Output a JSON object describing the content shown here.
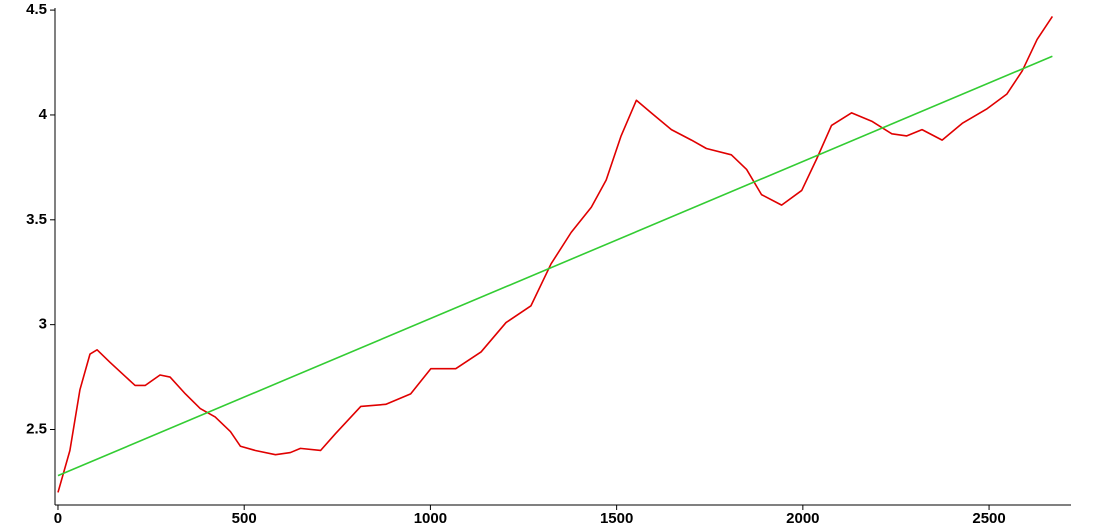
{
  "chart_data": {
    "type": "line",
    "xlim": [
      -8,
      2720
    ],
    "ylim": [
      2.14,
      4.51
    ],
    "xticks": [
      0,
      500,
      1000,
      1500,
      2000,
      2500
    ],
    "yticks": [
      2.5,
      3,
      3.5,
      4,
      4.5
    ],
    "series": [
      {
        "color": "#e00000",
        "x": [
          0,
          32,
          59,
          86,
          105,
          140,
          207,
          234,
          274,
          301,
          342,
          382,
          422,
          463,
          490,
          530,
          584,
          624,
          651,
          705,
          745,
          813,
          880,
          947,
          1001,
          1068,
          1136,
          1203,
          1270,
          1324,
          1378,
          1432,
          1472,
          1512,
          1553,
          1593,
          1647,
          1701,
          1741,
          1808,
          1849,
          1889,
          1943,
          1997,
          2037,
          2077,
          2131,
          2185,
          2239,
          2279,
          2320,
          2374,
          2428,
          2495,
          2548,
          2589,
          2629,
          2670
        ],
        "values": [
          2.2,
          2.4,
          2.69,
          2.86,
          2.88,
          2.82,
          2.71,
          2.71,
          2.76,
          2.75,
          2.67,
          2.6,
          2.56,
          2.49,
          2.42,
          2.4,
          2.38,
          2.39,
          2.41,
          2.4,
          2.48,
          2.61,
          2.62,
          2.67,
          2.79,
          2.79,
          2.87,
          3.01,
          3.09,
          3.29,
          3.44,
          3.56,
          3.69,
          3.9,
          4.07,
          4.01,
          3.93,
          3.88,
          3.84,
          3.81,
          3.74,
          3.62,
          3.57,
          3.64,
          3.79,
          3.95,
          4.01,
          3.97,
          3.91,
          3.9,
          3.93,
          3.88,
          3.96,
          4.03,
          4.1,
          4.21,
          4.36,
          4.47
        ]
      },
      {
        "color": "#33cc33",
        "x": [
          0,
          2670
        ],
        "values": [
          2.28,
          4.28
        ]
      }
    ]
  }
}
